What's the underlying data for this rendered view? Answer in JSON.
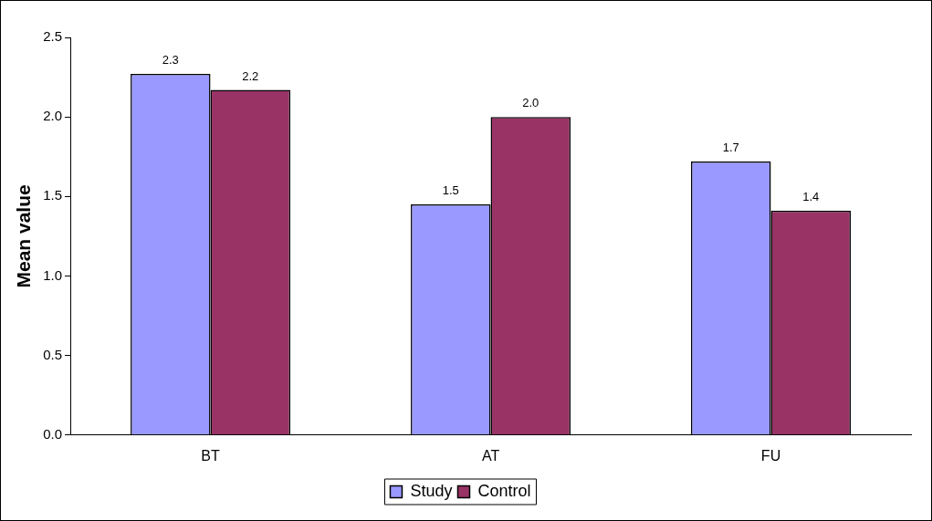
{
  "chart_data": {
    "type": "bar",
    "ylabel": "Mean value",
    "categories": [
      "BT",
      "AT",
      "FU"
    ],
    "series": [
      {
        "name": "Study",
        "color": "#9999ff",
        "values": [
          2.27,
          1.45,
          1.72
        ],
        "value_labels": [
          "2.3",
          "1.5",
          "1.7"
        ]
      },
      {
        "name": "Control",
        "color": "#993366",
        "values": [
          2.17,
          2.0,
          1.41
        ],
        "value_labels": [
          "2.2",
          "2.0",
          "1.4"
        ]
      }
    ],
    "ylim": [
      0,
      2.5
    ],
    "yticks": [
      {
        "value": 0,
        "label": "0.0"
      },
      {
        "value": 0.5,
        "label": "0.5"
      },
      {
        "value": 1,
        "label": "1.0"
      },
      {
        "value": 1.5,
        "label": "1.5"
      },
      {
        "value": 2,
        "label": "2.0"
      },
      {
        "value": 2.5,
        "label": "2.5"
      }
    ],
    "legend": "bottom",
    "grid": false
  }
}
